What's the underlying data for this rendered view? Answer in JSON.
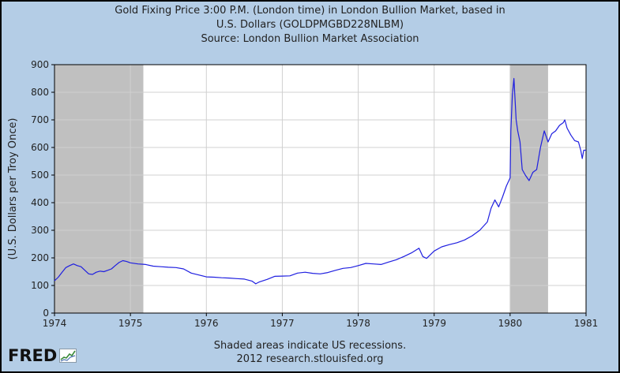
{
  "chart_data": {
    "type": "line",
    "title_lines": [
      "Gold Fixing Price 3:00 P.M. (London time) in London Bullion Market, based in",
      "U.S. Dollars (GOLDPMGBD228NLBM)",
      "Source: London Bullion Market Association"
    ],
    "ylabel": "(U.S. Dollars per Troy Once)",
    "xlabel": "",
    "xlim": [
      1974,
      1981
    ],
    "ylim": [
      0,
      900
    ],
    "x_ticks": [
      "1974",
      "1975",
      "1976",
      "1977",
      "1978",
      "1979",
      "1980",
      "1981"
    ],
    "y_ticks": [
      "0",
      "100",
      "200",
      "300",
      "400",
      "500",
      "600",
      "700",
      "800",
      "900"
    ],
    "grid": true,
    "recessions": [
      {
        "start": 1974.0,
        "end": 1975.17
      },
      {
        "start": 1980.0,
        "end": 1980.5
      }
    ],
    "series": [
      {
        "name": "GOLDPMGBD228NLBM",
        "color": "#1f1fe0",
        "x": [
          1974.0,
          1974.05,
          1974.1,
          1974.15,
          1974.2,
          1974.25,
          1974.3,
          1974.35,
          1974.4,
          1974.45,
          1974.5,
          1974.55,
          1974.6,
          1974.65,
          1974.7,
          1974.75,
          1974.8,
          1974.85,
          1974.9,
          1974.95,
          1975.0,
          1975.1,
          1975.2,
          1975.3,
          1975.4,
          1975.5,
          1975.6,
          1975.7,
          1975.8,
          1975.9,
          1976.0,
          1976.1,
          1976.2,
          1976.3,
          1976.4,
          1976.5,
          1976.6,
          1976.65,
          1976.7,
          1976.8,
          1976.9,
          1977.0,
          1977.1,
          1977.2,
          1977.3,
          1977.4,
          1977.5,
          1977.6,
          1977.7,
          1977.8,
          1977.9,
          1978.0,
          1978.1,
          1978.2,
          1978.3,
          1978.4,
          1978.5,
          1978.6,
          1978.7,
          1978.8,
          1978.85,
          1978.9,
          1979.0,
          1979.1,
          1979.2,
          1979.3,
          1979.4,
          1979.5,
          1979.6,
          1979.7,
          1979.75,
          1979.8,
          1979.85,
          1979.9,
          1979.95,
          1980.0,
          1980.01,
          1980.03,
          1980.05,
          1980.08,
          1980.1,
          1980.13,
          1980.16,
          1980.2,
          1980.25,
          1980.3,
          1980.35,
          1980.4,
          1980.45,
          1980.5,
          1980.55,
          1980.6,
          1980.65,
          1980.7,
          1980.72,
          1980.75,
          1980.8,
          1980.85,
          1980.9,
          1980.93,
          1980.95,
          1980.97,
          1981.0
        ],
        "values": [
          117,
          130,
          148,
          165,
          172,
          178,
          172,
          168,
          155,
          142,
          140,
          148,
          152,
          150,
          155,
          160,
          172,
          183,
          190,
          187,
          182,
          178,
          176,
          170,
          168,
          166,
          165,
          160,
          145,
          138,
          131,
          130,
          128,
          127,
          125,
          123,
          116,
          106,
          113,
          122,
          133,
          134,
          135,
          145,
          148,
          144,
          142,
          147,
          155,
          162,
          165,
          172,
          180,
          178,
          176,
          185,
          193,
          205,
          218,
          235,
          205,
          198,
          225,
          240,
          248,
          255,
          265,
          280,
          300,
          330,
          380,
          410,
          385,
          420,
          460,
          490,
          660,
          790,
          850,
          700,
          660,
          620,
          520,
          500,
          480,
          510,
          520,
          600,
          660,
          620,
          650,
          660,
          680,
          690,
          700,
          670,
          645,
          625,
          620,
          590,
          560,
          590,
          590
        ]
      }
    ]
  },
  "footer": {
    "note": "Shaded areas indicate US recessions.",
    "source": "2012 research.stlouisfed.org"
  },
  "logo": {
    "text": "FRED"
  }
}
